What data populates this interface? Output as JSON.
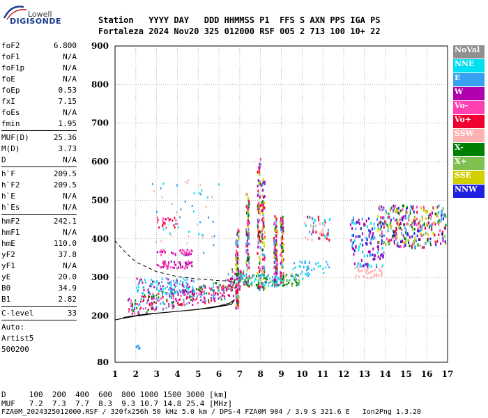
{
  "logo": {
    "line1": "Lowell",
    "line2": "DIGISONDE"
  },
  "header": {
    "columns": "Station   YYYY DAY   DDD HHMMSS P1  FFS S AXN PPS IGA PS",
    "values": "Fortaleza 2024 Nov20 325 012000 RSF 005 2 713 100 10+ 22"
  },
  "params": {
    "group1": [
      {
        "label": "foF2",
        "value": "6.800"
      },
      {
        "label": "foF1",
        "value": "N/A"
      },
      {
        "label": "foF1p",
        "value": "N/A"
      },
      {
        "label": "foE",
        "value": "N/A"
      },
      {
        "label": "foEp",
        "value": "0.53"
      },
      {
        "label": "fxI",
        "value": "7.15"
      },
      {
        "label": "foEs",
        "value": "N/A"
      },
      {
        "label": "fmin",
        "value": "1.95"
      }
    ],
    "group2": [
      {
        "label": "MUF(D)",
        "value": "25.36"
      },
      {
        "label": "M(D)",
        "value": "3.73"
      },
      {
        "label": "D",
        "value": "N/A"
      }
    ],
    "group3": [
      {
        "label": "h`F",
        "value": "209.5"
      },
      {
        "label": "h`F2",
        "value": "209.5"
      },
      {
        "label": "h`E",
        "value": "N/A"
      },
      {
        "label": "h`Es",
        "value": "N/A"
      }
    ],
    "group4": [
      {
        "label": "hmF2",
        "value": "242.1"
      },
      {
        "label": "hmF1",
        "value": "N/A"
      },
      {
        "label": "hmE",
        "value": "110.0"
      },
      {
        "label": "yF2",
        "value": "37.8"
      },
      {
        "label": "yF1",
        "value": "N/A"
      },
      {
        "label": "yE",
        "value": "20.0"
      },
      {
        "label": "B0",
        "value": "34.9"
      },
      {
        "label": "B1",
        "value": "2.82"
      }
    ],
    "clevel": {
      "label": "C-level",
      "value": "33"
    },
    "auto": {
      "line1": "Auto:",
      "line2": "Artist5",
      "line3": "500200"
    }
  },
  "legend": [
    {
      "label": "NoVal",
      "color": "#909090"
    },
    {
      "label": "NNE",
      "color": "#00e0f0"
    },
    {
      "label": "E",
      "color": "#3aa0f0"
    },
    {
      "label": "W",
      "color": "#b000b0"
    },
    {
      "label": "Vo-",
      "color": "#ff40b0"
    },
    {
      "label": "Vo+",
      "color": "#f00030"
    },
    {
      "label": "SSW",
      "color": "#ffb0b0"
    },
    {
      "label": "X-",
      "color": "#008000"
    },
    {
      "label": "X+",
      "color": "#80c050"
    },
    {
      "label": "SSE",
      "color": "#d0d000"
    },
    {
      "label": "NNW",
      "color": "#2020e0"
    }
  ],
  "chart_data": {
    "type": "scatter",
    "xlabel": "",
    "ylabel": "",
    "xlim": [
      1,
      17
    ],
    "ylim": [
      80,
      900
    ],
    "xticks": [
      1,
      2,
      3,
      4,
      5,
      6,
      7,
      8,
      9,
      10,
      11,
      12,
      13,
      14,
      15,
      16,
      17
    ],
    "yticks": [
      80,
      200,
      300,
      400,
      500,
      600,
      700,
      800,
      900
    ],
    "grid": true,
    "dashed_curve": [
      [
        1,
        395
      ],
      [
        1.5,
        365
      ],
      [
        2,
        340
      ],
      [
        3,
        315
      ],
      [
        4,
        302
      ],
      [
        5,
        296
      ],
      [
        6,
        292
      ],
      [
        6.7,
        290
      ]
    ],
    "profile_curve": [
      [
        1,
        190
      ],
      [
        2,
        200
      ],
      [
        3,
        207
      ],
      [
        4,
        212
      ],
      [
        5,
        217
      ],
      [
        6,
        226
      ],
      [
        6.5,
        233
      ],
      [
        6.75,
        242
      ],
      [
        6.6,
        230
      ],
      [
        5.5,
        220
      ],
      [
        4,
        212
      ],
      [
        2.5,
        205
      ],
      [
        1.4,
        196
      ]
    ]
  },
  "bottom": {
    "dline": "D     100  200  400  600  800 1000 1500 3000 [km]",
    "mufline": "MUF   7.2  7.3  7.7  8.3  9.3 10.7 14.8 25.4 [MHz]",
    "footer": "FZA0M_2024325012000.RSF / 320fx256h 50 kHz 5.0 km / DPS-4 FZA0M 904 / 3.9 S 321.6 E   Ion2Png 1.3.20"
  }
}
